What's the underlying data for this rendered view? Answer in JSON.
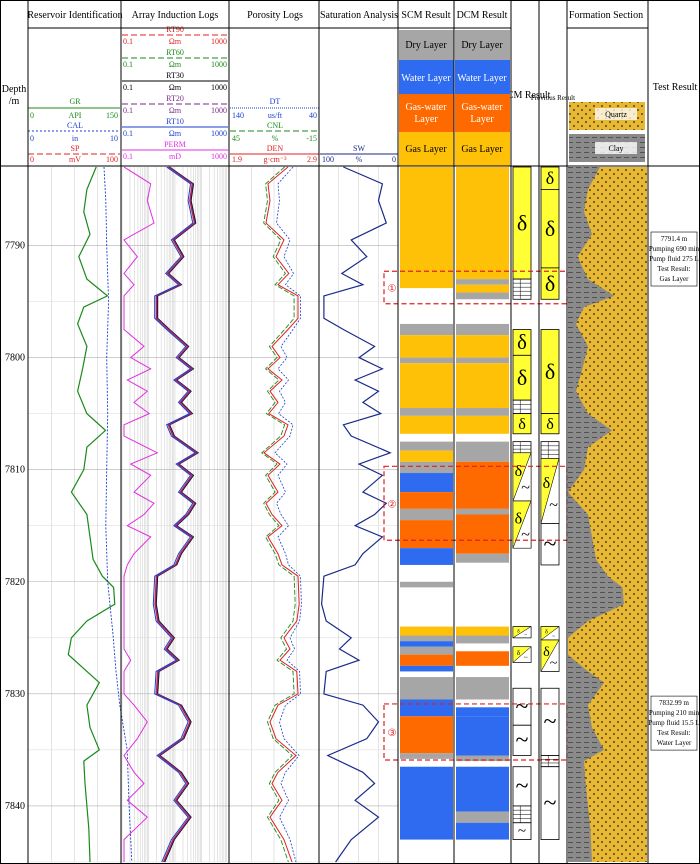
{
  "chart_data": {
    "type": "line",
    "depth_axis": {
      "label_line1": "Depth",
      "label_line2": "/m",
      "range": [
        7783,
        7845
      ],
      "ticks": [
        7790,
        7800,
        7810,
        7820,
        7830,
        7840
      ],
      "tick_labels": [
        "7790",
        "7800",
        "7810",
        "7820",
        "7830",
        "7840"
      ]
    },
    "track_titles": [
      "Reservoir Identification",
      "Array Induction Logs",
      "Porosity Logs",
      "Saturation Analysis",
      "SCM Result",
      "DCM Result",
      "DCM Result",
      "Previous Result",
      "Formation Section",
      "Test Result"
    ],
    "curve_headers": {
      "reservoir": [
        {
          "name": "GR",
          "unit": "API",
          "min": "0",
          "max": "150",
          "color": "#1a8a1a"
        },
        {
          "name": "CAL",
          "unit": "in",
          "min": "0",
          "max": "10",
          "color": "#1a3fd0"
        },
        {
          "name": "SP",
          "unit": "mV",
          "min": "0",
          "max": "100",
          "color": "#e02020"
        }
      ],
      "array_induction": [
        {
          "name": "RT90",
          "unit": "Ωm",
          "min": "0.1",
          "max": "1000",
          "color": "#e02020"
        },
        {
          "name": "RT60",
          "unit": "Ωm",
          "min": "0.1",
          "max": "1000",
          "color": "#1a8a1a"
        },
        {
          "name": "RT30",
          "unit": "Ωm",
          "min": "0.1",
          "max": "1000",
          "color": "#000000"
        },
        {
          "name": "RT20",
          "unit": "Ωm",
          "min": "0.1",
          "max": "1000",
          "color": "#7a2a8a"
        },
        {
          "name": "RT10",
          "unit": "Ωm",
          "min": "0.1",
          "max": "1000",
          "color": "#1a3fd0"
        },
        {
          "name": "PERM",
          "unit": "mD",
          "min": "0.1",
          "max": "1000",
          "color": "#e030e0"
        }
      ],
      "porosity": [
        {
          "name": "DT",
          "unit": "us/ft",
          "min": "140",
          "max": "40",
          "color": "#1a3fd0"
        },
        {
          "name": "CNL",
          "unit": "%",
          "min": "45",
          "max": "-15",
          "color": "#1a8a1a"
        },
        {
          "name": "DEN",
          "unit": "g·cm⁻³",
          "min": "1.9",
          "max": "2.9",
          "color": "#e02020"
        }
      ],
      "saturation": [
        {
          "name": "SW",
          "unit": "%",
          "min": "100",
          "max": "0",
          "color": "#1a2a8a"
        }
      ]
    },
    "legend": {
      "dry": "Dry Layer",
      "water": "Water Layer",
      "gas_water_1": "Gas-water",
      "gas_water_2": "Layer",
      "gas": "Gas Layer",
      "quartz": "Quartz",
      "clay": "Clay"
    },
    "layer_colors": {
      "gas": "#ffc107",
      "water": "#2e6bf0",
      "gaswater": "#ff6a00",
      "dry": "#a6a6a6"
    },
    "scm_layers": [
      {
        "top": 7783.0,
        "bottom": 7793.8,
        "type": "gas"
      },
      {
        "top": 7797.0,
        "bottom": 7798.0,
        "type": "dry"
      },
      {
        "top": 7798.0,
        "bottom": 7800.0,
        "type": "gas"
      },
      {
        "top": 7800.0,
        "bottom": 7800.5,
        "type": "dry"
      },
      {
        "top": 7800.5,
        "bottom": 7804.5,
        "type": "gas"
      },
      {
        "top": 7804.5,
        "bottom": 7805.2,
        "type": "dry"
      },
      {
        "top": 7805.2,
        "bottom": 7806.8,
        "type": "gas"
      },
      {
        "top": 7807.5,
        "bottom": 7808.3,
        "type": "dry"
      },
      {
        "top": 7808.3,
        "bottom": 7809.3,
        "type": "gas"
      },
      {
        "top": 7809.3,
        "bottom": 7810.3,
        "type": "dry"
      },
      {
        "top": 7810.3,
        "bottom": 7812.0,
        "type": "water"
      },
      {
        "top": 7812.0,
        "bottom": 7813.5,
        "type": "gaswater"
      },
      {
        "top": 7813.5,
        "bottom": 7814.5,
        "type": "dry"
      },
      {
        "top": 7814.5,
        "bottom": 7817.0,
        "type": "gaswater"
      },
      {
        "top": 7817.0,
        "bottom": 7818.5,
        "type": "water"
      },
      {
        "top": 7820.0,
        "bottom": 7820.5,
        "type": "dry"
      },
      {
        "top": 7824.0,
        "bottom": 7824.8,
        "type": "gas"
      },
      {
        "top": 7824.8,
        "bottom": 7825.3,
        "type": "dry"
      },
      {
        "top": 7825.3,
        "bottom": 7825.8,
        "type": "water"
      },
      {
        "top": 7825.8,
        "bottom": 7826.5,
        "type": "dry"
      },
      {
        "top": 7826.5,
        "bottom": 7827.5,
        "type": "gaswater"
      },
      {
        "top": 7827.5,
        "bottom": 7828.0,
        "type": "water"
      },
      {
        "top": 7828.5,
        "bottom": 7830.5,
        "type": "dry"
      },
      {
        "top": 7830.5,
        "bottom": 7832.0,
        "type": "water"
      },
      {
        "top": 7832.0,
        "bottom": 7835.3,
        "type": "gaswater"
      },
      {
        "top": 7835.3,
        "bottom": 7835.8,
        "type": "dry"
      },
      {
        "top": 7836.5,
        "bottom": 7843.0,
        "type": "water"
      }
    ],
    "dcm_layers": [
      {
        "top": 7783.0,
        "bottom": 7793.0,
        "type": "gas"
      },
      {
        "top": 7793.0,
        "bottom": 7793.5,
        "type": "dry"
      },
      {
        "top": 7793.5,
        "bottom": 7794.2,
        "type": "gas"
      },
      {
        "top": 7794.2,
        "bottom": 7794.8,
        "type": "dry"
      },
      {
        "top": 7797.0,
        "bottom": 7798.0,
        "type": "dry"
      },
      {
        "top": 7798.0,
        "bottom": 7800.0,
        "type": "gas"
      },
      {
        "top": 7800.0,
        "bottom": 7800.5,
        "type": "dry"
      },
      {
        "top": 7800.5,
        "bottom": 7804.5,
        "type": "gas"
      },
      {
        "top": 7804.5,
        "bottom": 7805.2,
        "type": "dry"
      },
      {
        "top": 7805.2,
        "bottom": 7806.8,
        "type": "gas"
      },
      {
        "top": 7807.5,
        "bottom": 7809.3,
        "type": "dry"
      },
      {
        "top": 7809.3,
        "bottom": 7813.5,
        "type": "gaswater"
      },
      {
        "top": 7813.5,
        "bottom": 7814.0,
        "type": "dry"
      },
      {
        "top": 7814.0,
        "bottom": 7817.5,
        "type": "gaswater"
      },
      {
        "top": 7817.5,
        "bottom": 7818.3,
        "type": "dry"
      },
      {
        "top": 7824.0,
        "bottom": 7824.8,
        "type": "gas"
      },
      {
        "top": 7824.8,
        "bottom": 7825.5,
        "type": "dry"
      },
      {
        "top": 7826.2,
        "bottom": 7827.5,
        "type": "gaswater"
      },
      {
        "top": 7828.5,
        "bottom": 7830.5,
        "type": "dry"
      },
      {
        "top": 7831.2,
        "bottom": 7832.0,
        "type": "water"
      },
      {
        "top": 7832.0,
        "bottom": 7835.5,
        "type": "water"
      },
      {
        "top": 7835.5,
        "bottom": 7836.0,
        "type": "dry"
      },
      {
        "top": 7836.5,
        "bottom": 7840.5,
        "type": "water"
      },
      {
        "top": 7840.5,
        "bottom": 7841.5,
        "type": "dry"
      },
      {
        "top": 7841.5,
        "bottom": 7843.0,
        "type": "water"
      }
    ],
    "dcm_symbols": [
      {
        "top": 7783.0,
        "bottom": 7793.0,
        "sym": "gas"
      },
      {
        "top": 7793.0,
        "bottom": 7794.8,
        "sym": "dry"
      },
      {
        "top": 7797.5,
        "bottom": 7799.8,
        "sym": "gas"
      },
      {
        "top": 7799.8,
        "bottom": 7803.8,
        "sym": "gas"
      },
      {
        "top": 7803.8,
        "bottom": 7805.0,
        "sym": "dry"
      },
      {
        "top": 7805.0,
        "bottom": 7806.8,
        "sym": "gas"
      },
      {
        "top": 7807.5,
        "bottom": 7808.5,
        "sym": "dry"
      },
      {
        "top": 7808.5,
        "bottom": 7812.8,
        "sym": "gaswater"
      },
      {
        "top": 7812.8,
        "bottom": 7817.0,
        "sym": "gaswater"
      },
      {
        "top": 7824.0,
        "bottom": 7825.0,
        "sym": "gaswater"
      },
      {
        "top": 7825.8,
        "bottom": 7827.2,
        "sym": "gaswater"
      },
      {
        "top": 7829.5,
        "bottom": 7832.8,
        "sym": "water"
      },
      {
        "top": 7832.8,
        "bottom": 7835.5,
        "sym": "water"
      },
      {
        "top": 7836.5,
        "bottom": 7840.0,
        "sym": "water"
      },
      {
        "top": 7840.0,
        "bottom": 7841.5,
        "sym": "dry"
      },
      {
        "top": 7841.5,
        "bottom": 7843.0,
        "sym": "water"
      }
    ],
    "prev_symbols": [
      {
        "top": 7783.0,
        "bottom": 7785.0,
        "sym": "gas"
      },
      {
        "top": 7785.0,
        "bottom": 7792.0,
        "sym": "gas"
      },
      {
        "top": 7792.0,
        "bottom": 7794.8,
        "sym": "gas"
      },
      {
        "top": 7797.5,
        "bottom": 7805.0,
        "sym": "gas"
      },
      {
        "top": 7805.0,
        "bottom": 7806.8,
        "sym": "gas"
      },
      {
        "top": 7807.5,
        "bottom": 7809.0,
        "sym": "dry"
      },
      {
        "top": 7809.0,
        "bottom": 7814.8,
        "sym": "gaswater"
      },
      {
        "top": 7814.8,
        "bottom": 7818.5,
        "sym": "water"
      },
      {
        "top": 7824.0,
        "bottom": 7825.2,
        "sym": "gaswater"
      },
      {
        "top": 7825.2,
        "bottom": 7828.0,
        "sym": "gaswater"
      },
      {
        "top": 7829.5,
        "bottom": 7835.5,
        "sym": "water"
      },
      {
        "top": 7835.5,
        "bottom": 7836.5,
        "sym": "dry"
      },
      {
        "top": 7836.5,
        "bottom": 7843.0,
        "sym": "water"
      }
    ],
    "intervals": [
      {
        "label": "①",
        "top": 7792.3,
        "bottom": 7795.2
      },
      {
        "label": "②",
        "top": 7809.7,
        "bottom": 7816.3
      },
      {
        "label": "③",
        "top": 7830.9,
        "bottom": 7835.9
      }
    ],
    "test_results": [
      {
        "top": 7788.8,
        "lines": [
          "7791.4 m",
          "Pumping 690 min",
          "Pump fluid 275 L",
          "Test Result:",
          "Gas Layer"
        ]
      },
      {
        "top": 7830.2,
        "lines": [
          "7832.99 m",
          "Pumping 210 min",
          "Pump fluid 15.5 L",
          "Test Result:",
          "Water Layer"
        ]
      }
    ],
    "curves": {
      "GR": [
        [
          7783,
          110
        ],
        [
          7785,
          95
        ],
        [
          7787,
          90
        ],
        [
          7789,
          100
        ],
        [
          7791,
          82
        ],
        [
          7793,
          95
        ],
        [
          7794.5,
          128
        ],
        [
          7795.5,
          90
        ],
        [
          7797,
          80
        ],
        [
          7799,
          95
        ],
        [
          7801,
          88
        ],
        [
          7803,
          80
        ],
        [
          7805,
          95
        ],
        [
          7806.5,
          125
        ],
        [
          7808,
          95
        ],
        [
          7810,
          90
        ],
        [
          7812,
          70
        ],
        [
          7814,
          95
        ],
        [
          7816,
          100
        ],
        [
          7818,
          105
        ],
        [
          7819.5,
          120
        ],
        [
          7820.5,
          138
        ],
        [
          7822,
          140
        ],
        [
          7823.5,
          95
        ],
        [
          7825,
          70
        ],
        [
          7826.5,
          65
        ],
        [
          7828,
          95
        ],
        [
          7829,
          115
        ],
        [
          7831,
          95
        ],
        [
          7833,
          100
        ],
        [
          7835,
          115
        ],
        [
          7836,
          90
        ],
        [
          7838,
          92
        ],
        [
          7840,
          95
        ],
        [
          7842,
          98
        ],
        [
          7845,
          100
        ]
      ],
      "CAL": [
        [
          7783,
          115
        ],
        [
          7786,
          117
        ],
        [
          7790,
          118
        ],
        [
          7795,
          120
        ],
        [
          7800,
          118
        ],
        [
          7805,
          119
        ],
        [
          7810,
          118
        ],
        [
          7815,
          117
        ],
        [
          7820,
          119
        ],
        [
          7825,
          125
        ],
        [
          7828,
          128
        ],
        [
          7831,
          132
        ],
        [
          7835,
          140
        ],
        [
          7840,
          142
        ],
        [
          7845,
          145
        ]
      ],
      "SW": [
        [
          7783,
          70
        ],
        [
          7784.5,
          20
        ],
        [
          7786,
          25
        ],
        [
          7788,
          15
        ],
        [
          7789.5,
          60
        ],
        [
          7791,
          40
        ],
        [
          7792.5,
          72
        ],
        [
          7793.5,
          45
        ],
        [
          7794.5,
          95
        ],
        [
          7796.5,
          95
        ],
        [
          7797.5,
          70
        ],
        [
          7799,
          30
        ],
        [
          7800,
          50
        ],
        [
          7801,
          20
        ],
        [
          7802,
          55
        ],
        [
          7803,
          25
        ],
        [
          7804,
          45
        ],
        [
          7805,
          22
        ],
        [
          7806,
          70
        ],
        [
          7807,
          60
        ],
        [
          7808.5,
          10
        ],
        [
          7809.5,
          50
        ],
        [
          7810.5,
          20
        ],
        [
          7812,
          45
        ],
        [
          7813,
          15
        ],
        [
          7814,
          30
        ],
        [
          7815,
          55
        ],
        [
          7816,
          20
        ],
        [
          7817.5,
          45
        ],
        [
          7818.5,
          55
        ],
        [
          7819.5,
          95
        ],
        [
          7822,
          98
        ],
        [
          7823.5,
          92
        ],
        [
          7825,
          60
        ],
        [
          7826,
          75
        ],
        [
          7827,
          50
        ],
        [
          7828,
          92
        ],
        [
          7830,
          95
        ],
        [
          7831,
          45
        ],
        [
          7832.5,
          25
        ],
        [
          7834,
          40
        ],
        [
          7835.5,
          90
        ],
        [
          7837,
          45
        ],
        [
          7838,
          30
        ],
        [
          7839.5,
          55
        ],
        [
          7841,
          25
        ],
        [
          7843,
          60
        ],
        [
          7845,
          80
        ]
      ]
    }
  }
}
